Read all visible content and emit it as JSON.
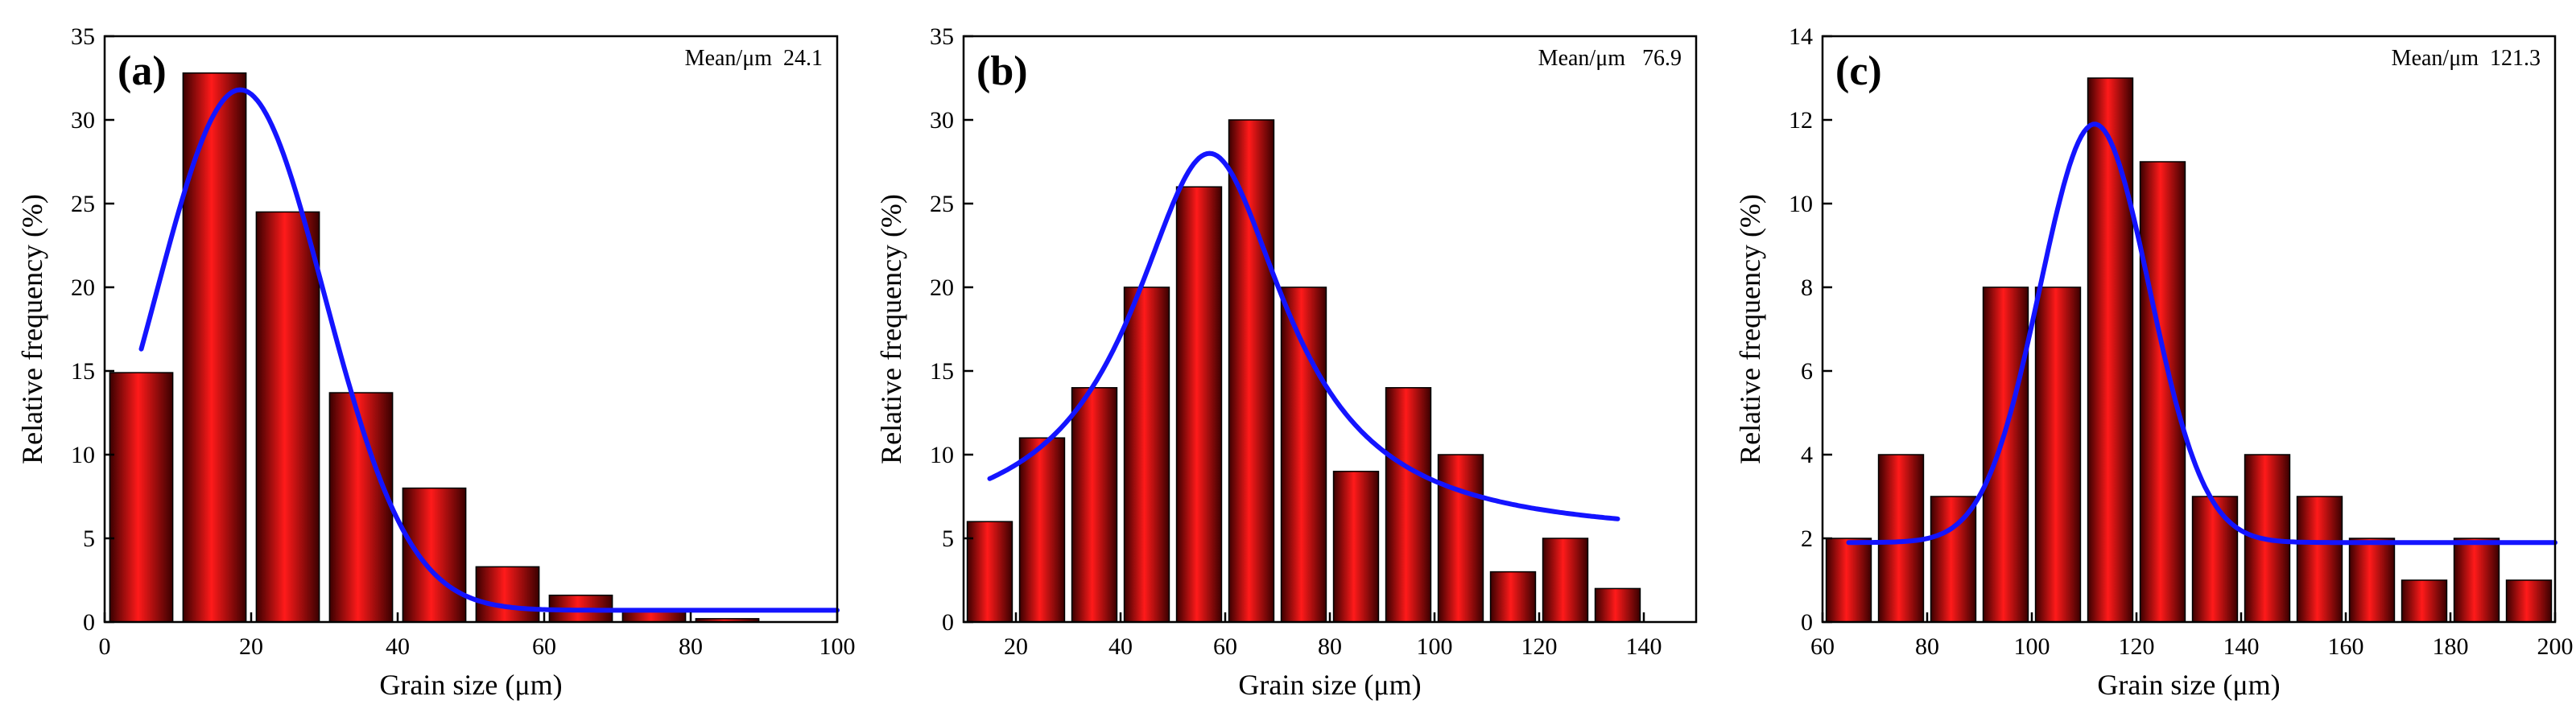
{
  "colors": {
    "bar_fill": "#dd0d0d",
    "bar_stroke": "#000000",
    "curve": "#1414ff",
    "axis": "#000000"
  },
  "chart_data": [
    {
      "type": "bar",
      "panel_label": "(a)",
      "mean_label": "Mean/μm  24.1",
      "xlabel": "Grain size (μm)",
      "ylabel": "Relative frequency (%)",
      "xlim": [
        0,
        100
      ],
      "ylim": [
        0,
        35
      ],
      "xticks": [
        0,
        20,
        40,
        60,
        80,
        100
      ],
      "yticks": [
        0,
        5,
        10,
        15,
        20,
        25,
        30,
        35
      ],
      "bin_width": 10,
      "bin_centers": [
        5,
        15,
        25,
        35,
        45,
        55,
        65,
        75,
        85
      ],
      "values": [
        14.9,
        32.8,
        24.5,
        13.7,
        8.0,
        3.3,
        1.6,
        0.8,
        0.2
      ],
      "fit_curve": {
        "type": "gaussian",
        "x_range": [
          5,
          100
        ],
        "offset": 0.7,
        "amplitude": 31.1,
        "center": 18.5,
        "sigma": 11.5
      }
    },
    {
      "type": "bar",
      "panel_label": "(b)",
      "mean_label": "Mean/μm   76.9",
      "xlabel": "Grain size (μm)",
      "ylabel": "Relative frequency (%)",
      "xlim": [
        10,
        150
      ],
      "ylim": [
        0,
        35
      ],
      "xticks": [
        20,
        40,
        60,
        80,
        100,
        120,
        140
      ],
      "yticks": [
        0,
        5,
        10,
        15,
        20,
        25,
        30,
        35
      ],
      "bin_width": 10,
      "bin_centers": [
        15,
        25,
        35,
        45,
        55,
        65,
        75,
        85,
        95,
        105,
        115,
        125,
        135
      ],
      "values": [
        6,
        11,
        14,
        20,
        26,
        30,
        20,
        9,
        14,
        10,
        3,
        5,
        2
      ],
      "fit_curve": {
        "type": "lorentzian",
        "x_range": [
          15,
          135
        ],
        "offset": 5.0,
        "amplitude": 23.0,
        "center": 57,
        "gamma": 18
      }
    },
    {
      "type": "bar",
      "panel_label": "(c)",
      "mean_label": "Mean/μm  121.3",
      "xlabel": "Grain size (μm)",
      "ylabel": "Relative frequency (%)",
      "xlim": [
        60,
        200
      ],
      "ylim": [
        0,
        14
      ],
      "xticks": [
        60,
        80,
        100,
        120,
        140,
        160,
        180,
        200
      ],
      "yticks": [
        0,
        2,
        4,
        6,
        8,
        10,
        12,
        14
      ],
      "bin_width": 10,
      "bin_centers": [
        65,
        75,
        85,
        95,
        105,
        115,
        125,
        135,
        145,
        155,
        165,
        175,
        185,
        195
      ],
      "values": [
        2,
        4,
        3,
        8,
        8,
        13,
        11,
        3,
        4,
        3,
        2,
        1,
        2,
        1
      ],
      "fit_curve": {
        "type": "gaussian",
        "x_range": [
          65,
          200
        ],
        "offset": 1.9,
        "amplitude": 10.0,
        "center": 112,
        "sigma": 10.5
      }
    }
  ]
}
